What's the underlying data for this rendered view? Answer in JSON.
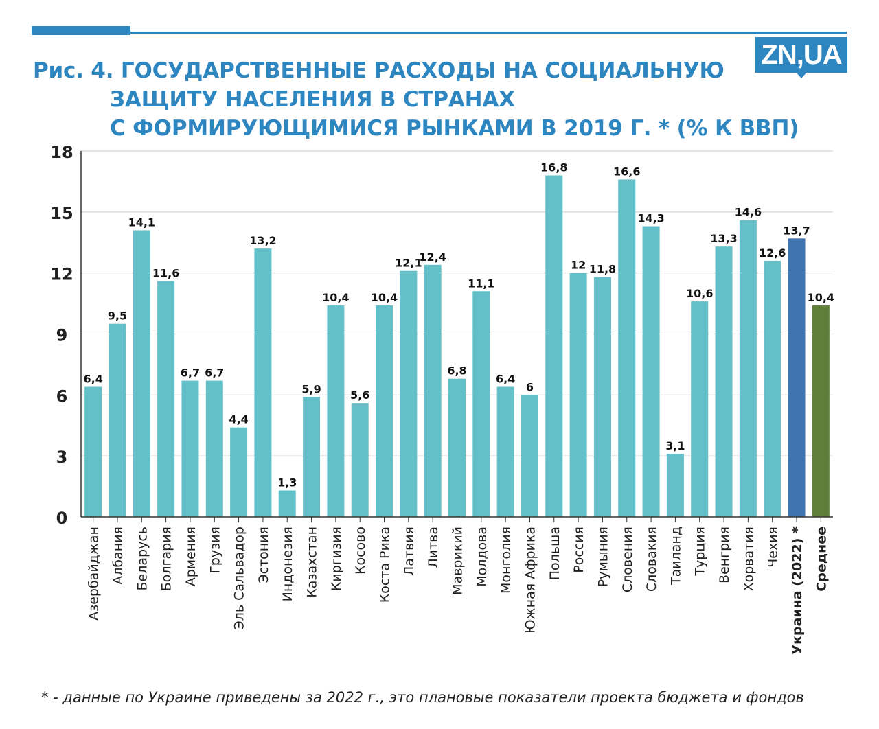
{
  "header": {
    "title_line1": "Рис. 4. ГОСУДАРСТВЕННЫЕ РАСХОДЫ НА СОЦИАЛЬНУЮ",
    "title_line2": "ЗАЩИТУ НАСЕЛЕНИЯ В СТРАНАХ",
    "title_line3": "С ФОРМИРУЮЩИМИСЯ РЫНКАМИ В 2019 Г. * (% К ВВП)",
    "logo": "ZN,UA"
  },
  "colors": {
    "accent": "#2e86c1",
    "bar": "#63bfc8",
    "bar_ukraine": "#3f74b0",
    "bar_average": "#5f7f3b",
    "grid": "#cccccc"
  },
  "chart_data": {
    "type": "bar",
    "title": "Рис. 4. ГОСУДАРСТВЕННЫЕ РАСХОДЫ НА СОЦИАЛЬНУЮ ЗАЩИТУ НАСЕЛЕНИЯ В СТРАНАХ С ФОРМИРУЮЩИМИСЯ РЫНКАМИ В 2019 Г. * (% К ВВП)",
    "categories": [
      "Азербайджан",
      "Албания",
      "Беларусь",
      "Болгария",
      "Армения",
      "Грузия",
      "Эль Сальвадор",
      "Эстония",
      "Индонезия",
      "Казахстан",
      "Киргизия",
      "Косово",
      "Коста Рика",
      "Латвия",
      "Литва",
      "Маврикий",
      "Молдова",
      "Монголия",
      "Южная Африка",
      "Польша",
      "Россия",
      "Румыния",
      "Словения",
      "Словакия",
      "Таиланд",
      "Турция",
      "Венгрия",
      "Хорватия",
      "Чехия",
      "Украина (2022) *",
      "Среднее"
    ],
    "values": [
      6.4,
      9.5,
      14.1,
      11.6,
      6.7,
      6.7,
      4.4,
      13.2,
      1.3,
      5.9,
      10.4,
      5.6,
      10.4,
      12.1,
      12.4,
      6.8,
      11.1,
      6.4,
      6,
      16.8,
      12,
      11.8,
      16.6,
      14.3,
      3.1,
      10.6,
      13.3,
      14.6,
      12.6,
      13.7,
      10.4
    ],
    "value_labels": [
      "6,4",
      "9,5",
      "14,1",
      "11,6",
      "6,7",
      "6,7",
      "4,4",
      "13,2",
      "1,3",
      "5,9",
      "10,4",
      "5,6",
      "10,4",
      "12,1",
      "12,4",
      "6,8",
      "11,1",
      "6,4",
      "6",
      "16,8",
      "12",
      "11,8",
      "16,6",
      "14,3",
      "3,1",
      "10,6",
      "13,3",
      "14,6",
      "12,6",
      "13,7",
      "10,4"
    ],
    "highlight": {
      "Украина (2022) *": "ukraine",
      "Среднее": "average"
    },
    "bold_categories": [
      "Украина (2022) *",
      "Среднее"
    ],
    "ylim": [
      0,
      18
    ],
    "yticks": [
      0,
      3,
      6,
      9,
      12,
      15,
      18
    ],
    "grid": true,
    "xlabel": "",
    "ylabel": ""
  },
  "footnote": "* - данные по Украине приведены за 2022 г., это плановые показатели проекта бюджета и фондов"
}
